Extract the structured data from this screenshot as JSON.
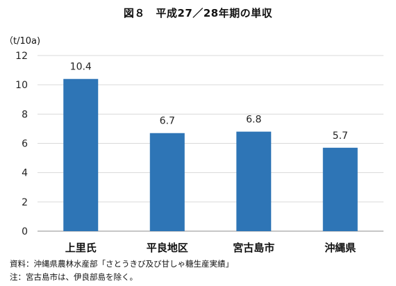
{
  "chart_data": {
    "type": "bar",
    "title": "図８　平成27／28年期の単収",
    "ylabel": "（t/10a)",
    "xlabel": "",
    "categories": [
      "上里氏",
      "平良地区",
      "宮古島市",
      "沖縄県"
    ],
    "values": [
      10.4,
      6.7,
      6.8,
      5.7
    ],
    "value_labels": [
      "10.4",
      "6.7",
      "6.8",
      "5.7"
    ],
    "ylim": [
      0,
      12
    ],
    "yticks": [
      0,
      2,
      4,
      6,
      8,
      10,
      12
    ],
    "grid": true,
    "legend": "none",
    "bar_color": "#2e75b6",
    "grid_color": "#d9d9d9"
  },
  "footer": {
    "source": "資料：沖縄県農林水産部「さとうきび及び甘しゃ糖生産実績」",
    "note": "注：宮古島市は、伊良部島を除く。"
  }
}
